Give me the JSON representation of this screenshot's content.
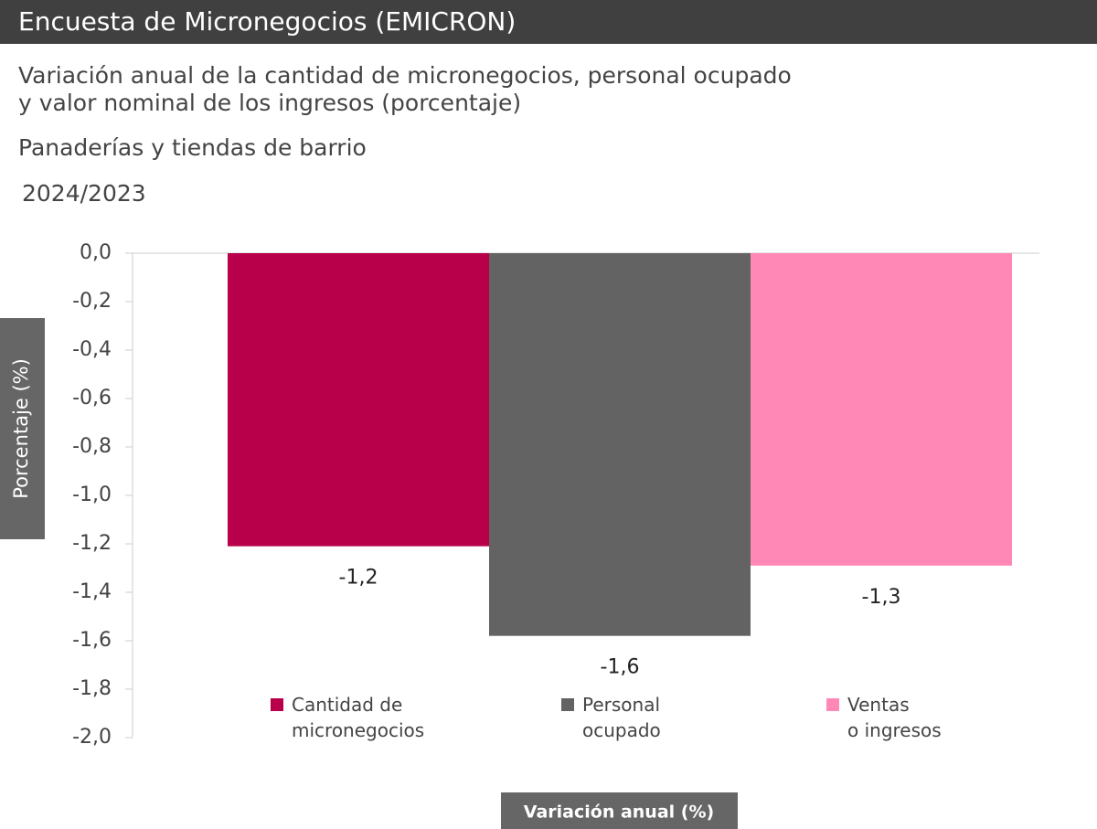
{
  "header": {
    "title": "Encuesta de Micronegocios (EMICRON)"
  },
  "chart_data": {
    "type": "bar",
    "title": "Variación anual de la cantidad de micronegocios, personal ocupado\n y valor nominal de los ingresos (porcentaje)",
    "subtitle": "Panaderías y tiendas de barrio",
    "period": "2024/2023",
    "y_label": "Porcentaje (%)",
    "x_label": "Variación anual (%)",
    "categories": [
      "Cantidad de\nmicronegocios",
      "Personal\nocupado",
      "Ventas\no ingresos"
    ],
    "values": [
      -1.21,
      -1.58,
      -1.29
    ],
    "value_labels": [
      "-1,2",
      "-1,6",
      "-1,3"
    ],
    "colors": [
      "#b8004a",
      "#636363",
      "#ff88b7"
    ],
    "ylim": [
      -2.0,
      0.0
    ],
    "yticks": [
      {
        "value": 0.0,
        "label": "0,0"
      },
      {
        "value": -0.2,
        "label": "-0,2"
      },
      {
        "value": -0.4,
        "label": "-0,4"
      },
      {
        "value": -0.6,
        "label": "-0,6"
      },
      {
        "value": -0.8,
        "label": "-0,8"
      },
      {
        "value": -1.0,
        "label": "-1,0"
      },
      {
        "value": -1.2,
        "label": "-1,2"
      },
      {
        "value": -1.4,
        "label": "-1,4"
      },
      {
        "value": -1.6,
        "label": "-1,6"
      },
      {
        "value": -1.8,
        "label": "-1,8"
      },
      {
        "value": -2.0,
        "label": "-2,0"
      }
    ]
  }
}
